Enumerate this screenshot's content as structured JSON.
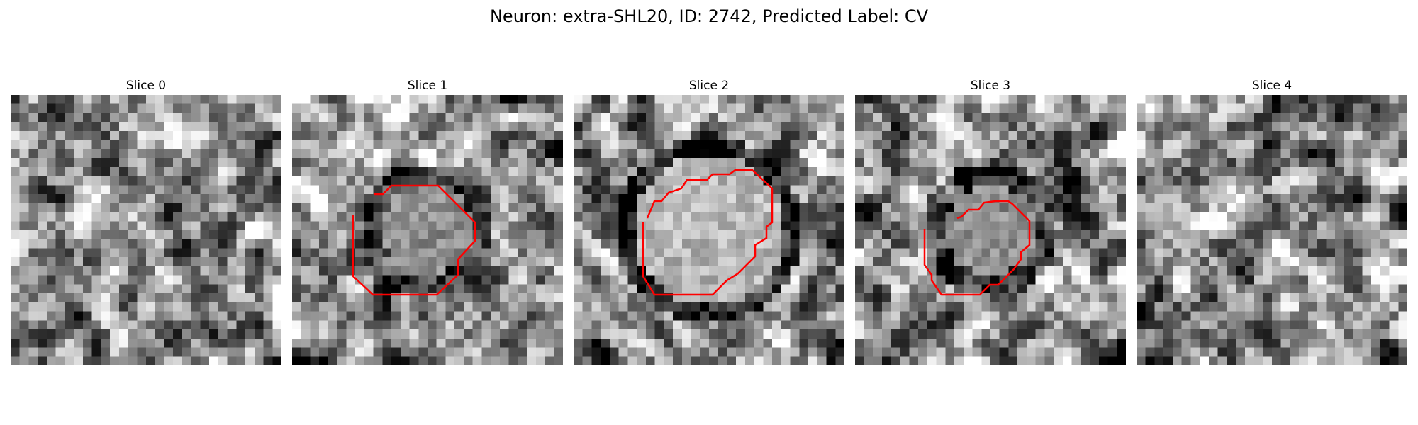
{
  "figure": {
    "title": "Neuron: extra-SHL20, ID: 2742, Predicted Label: CV",
    "outline_color": "#ff0000",
    "colormap": "gray"
  },
  "panels": [
    {
      "title": "Slice 0",
      "has_outline": false,
      "seed": 11
    },
    {
      "title": "Slice 1",
      "has_outline": true,
      "seed": 23
    },
    {
      "title": "Slice 2",
      "has_outline": true,
      "seed": 37
    },
    {
      "title": "Slice 3",
      "has_outline": true,
      "seed": 41
    },
    {
      "title": "Slice 4",
      "has_outline": false,
      "seed": 53
    }
  ]
}
